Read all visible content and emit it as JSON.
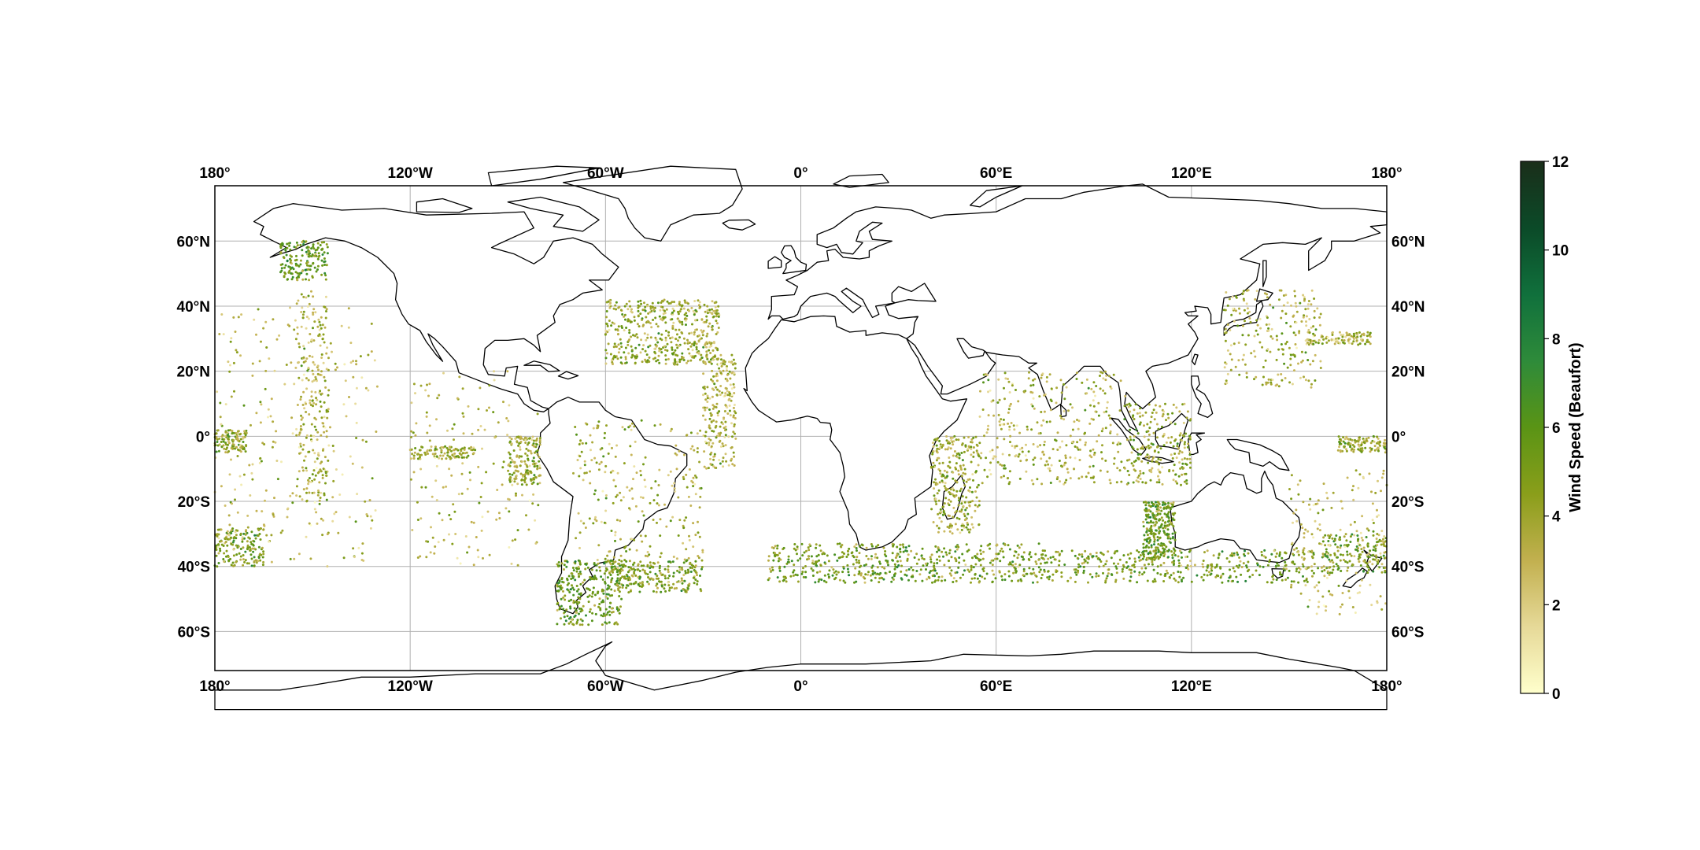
{
  "map": {
    "projection": "PlateCarree",
    "extent": {
      "lon": [
        -180,
        180
      ],
      "lat": [
        -72,
        77
      ]
    },
    "gridlines": {
      "lon": [
        -180,
        -120,
        -60,
        0,
        60,
        120,
        180
      ],
      "lat": [
        -60,
        -40,
        -20,
        0,
        20,
        40,
        60
      ]
    },
    "lon_tick_labels": [
      "180°",
      "120°W",
      "60°W",
      "0°",
      "60°E",
      "120°E",
      "180°"
    ],
    "lat_tick_labels": [
      "60°S",
      "40°S",
      "20°S",
      "0°",
      "20°N",
      "40°N",
      "60°N"
    ],
    "colors": {
      "coastline": "#000000",
      "grid": "#b0b0b0",
      "frame": "#000000"
    }
  },
  "chart_data": {
    "type": "scatter",
    "x_axis": "longitude",
    "y_axis": "latitude",
    "color_variable": "Wind Speed (Beaufort)",
    "point_clusters_description_free": true,
    "clusters": [
      {
        "lon": [
          -60,
          -25
        ],
        "lat": [
          22,
          42
        ],
        "w": 9,
        "vmean": 4
      },
      {
        "lon": [
          -70,
          -30
        ],
        "lat": [
          -45,
          5
        ],
        "w": 5,
        "vmean": 3.5
      },
      {
        "lon": [
          -30,
          -20
        ],
        "lat": [
          -10,
          25
        ],
        "w": 4,
        "vmean": 3.5
      },
      {
        "lon": [
          -75,
          -55
        ],
        "lat": [
          -58,
          -38
        ],
        "w": 5,
        "vmean": 5.5
      },
      {
        "lon": [
          -60,
          -30
        ],
        "lat": [
          -48,
          -38
        ],
        "w": 4,
        "vmean": 5
      },
      {
        "lon": [
          -10,
          75
        ],
        "lat": [
          -45,
          -33
        ],
        "w": 10,
        "vmean": 5
      },
      {
        "lon": [
          75,
          160
        ],
        "lat": [
          -45,
          -35
        ],
        "w": 7,
        "vmean": 5
      },
      {
        "lon": [
          160,
          180
        ],
        "lat": [
          -42,
          -30
        ],
        "w": 3,
        "vmean": 5
      },
      {
        "lon": [
          -180,
          -165
        ],
        "lat": [
          -40,
          -28
        ],
        "w": 3,
        "vmean": 5
      },
      {
        "lon": [
          40,
          55
        ],
        "lat": [
          -30,
          0
        ],
        "w": 5,
        "vmean": 4
      },
      {
        "lon": [
          105,
          115
        ],
        "lat": [
          -38,
          -20
        ],
        "w": 5,
        "vmean": 5.5
      },
      {
        "lon": [
          55,
          100
        ],
        "lat": [
          -15,
          20
        ],
        "w": 6,
        "vmean": 3.5
      },
      {
        "lon": [
          100,
          120
        ],
        "lat": [
          -15,
          10
        ],
        "w": 4,
        "vmean": 4
      },
      {
        "lon": [
          -160,
          -145
        ],
        "lat": [
          48,
          60
        ],
        "w": 3,
        "vmean": 5.5
      },
      {
        "lon": [
          -155,
          -145
        ],
        "lat": [
          -20,
          45
        ],
        "w": 4,
        "vmean": 3.5
      },
      {
        "lon": [
          -180,
          -170
        ],
        "lat": [
          -5,
          2
        ],
        "w": 2,
        "vmean": 4.5
      },
      {
        "lon": [
          -120,
          -100
        ],
        "lat": [
          -7,
          -3
        ],
        "w": 2,
        "vmean": 4
      },
      {
        "lon": [
          -90,
          -80
        ],
        "lat": [
          -15,
          0
        ],
        "w": 3,
        "vmean": 4
      },
      {
        "lon": [
          130,
          160
        ],
        "lat": [
          15,
          45
        ],
        "w": 4,
        "vmean": 3.5
      },
      {
        "lon": [
          155,
          175
        ],
        "lat": [
          28,
          32
        ],
        "w": 2,
        "vmean": 3.5
      },
      {
        "lon": [
          165,
          180
        ],
        "lat": [
          -5,
          0
        ],
        "w": 2,
        "vmean": 4
      },
      {
        "lon": [
          -120,
          -80
        ],
        "lat": [
          -40,
          20
        ],
        "w": 3,
        "vmean": 3
      },
      {
        "lon": [
          -180,
          -130
        ],
        "lat": [
          -40,
          40
        ],
        "w": 5,
        "vmean": 3
      },
      {
        "lon": [
          150,
          180
        ],
        "lat": [
          -55,
          -10
        ],
        "w": 3,
        "vmean": 3
      }
    ],
    "colorbar": {
      "label": "Wind Speed (Beaufort)",
      "vmin": 0,
      "vmax": 12,
      "ticks": [
        0,
        2,
        4,
        6,
        8,
        10,
        12
      ],
      "tick_labels": [
        "0",
        "2",
        "4",
        "6",
        "8",
        "10",
        "12"
      ],
      "cmap_stops": [
        "#ffffcc",
        "#e6d998",
        "#c2b04f",
        "#8a9e1a",
        "#5a9415",
        "#2e8b3a",
        "#10703c",
        "#0b4a28",
        "#1a2e1a"
      ]
    }
  }
}
